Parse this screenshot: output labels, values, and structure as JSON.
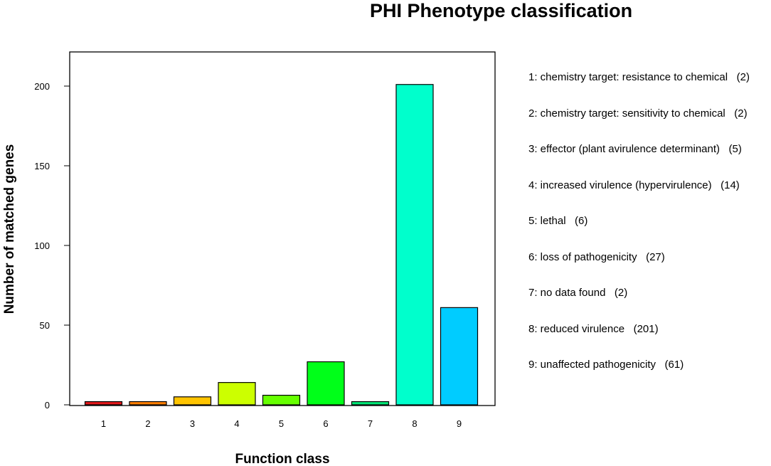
{
  "chart_data": {
    "type": "bar",
    "title": "PHI Phenotype classification",
    "xlabel": "Function class",
    "ylabel": "Number of matched genes",
    "categories": [
      "1",
      "2",
      "3",
      "4",
      "5",
      "6",
      "7",
      "8",
      "9"
    ],
    "values": [
      2,
      2,
      5,
      14,
      6,
      27,
      2,
      201,
      61
    ],
    "colors": [
      "#e31a1c",
      "#ff7f00",
      "#ffc400",
      "#ccff00",
      "#66ff00",
      "#00ff19",
      "#00e676",
      "#00ffcc",
      "#00ccff"
    ],
    "yticks": [
      0,
      50,
      100,
      150,
      200
    ],
    "ylim": [
      0,
      215
    ],
    "legend": [
      "1: chemistry target: resistance to chemical   (2)",
      "2: chemistry target: sensitivity to chemical   (2)",
      "3: effector (plant avirulence determinant)   (5)",
      "4: increased virulence (hypervirulence)   (14)",
      "5: lethal   (6)",
      "6: loss of pathogenicity   (27)",
      "7: no data found   (2)",
      "8: reduced virulence   (201)",
      "9: unaffected pathogenicity   (61)"
    ],
    "legend_position": "right",
    "grid": false
  }
}
